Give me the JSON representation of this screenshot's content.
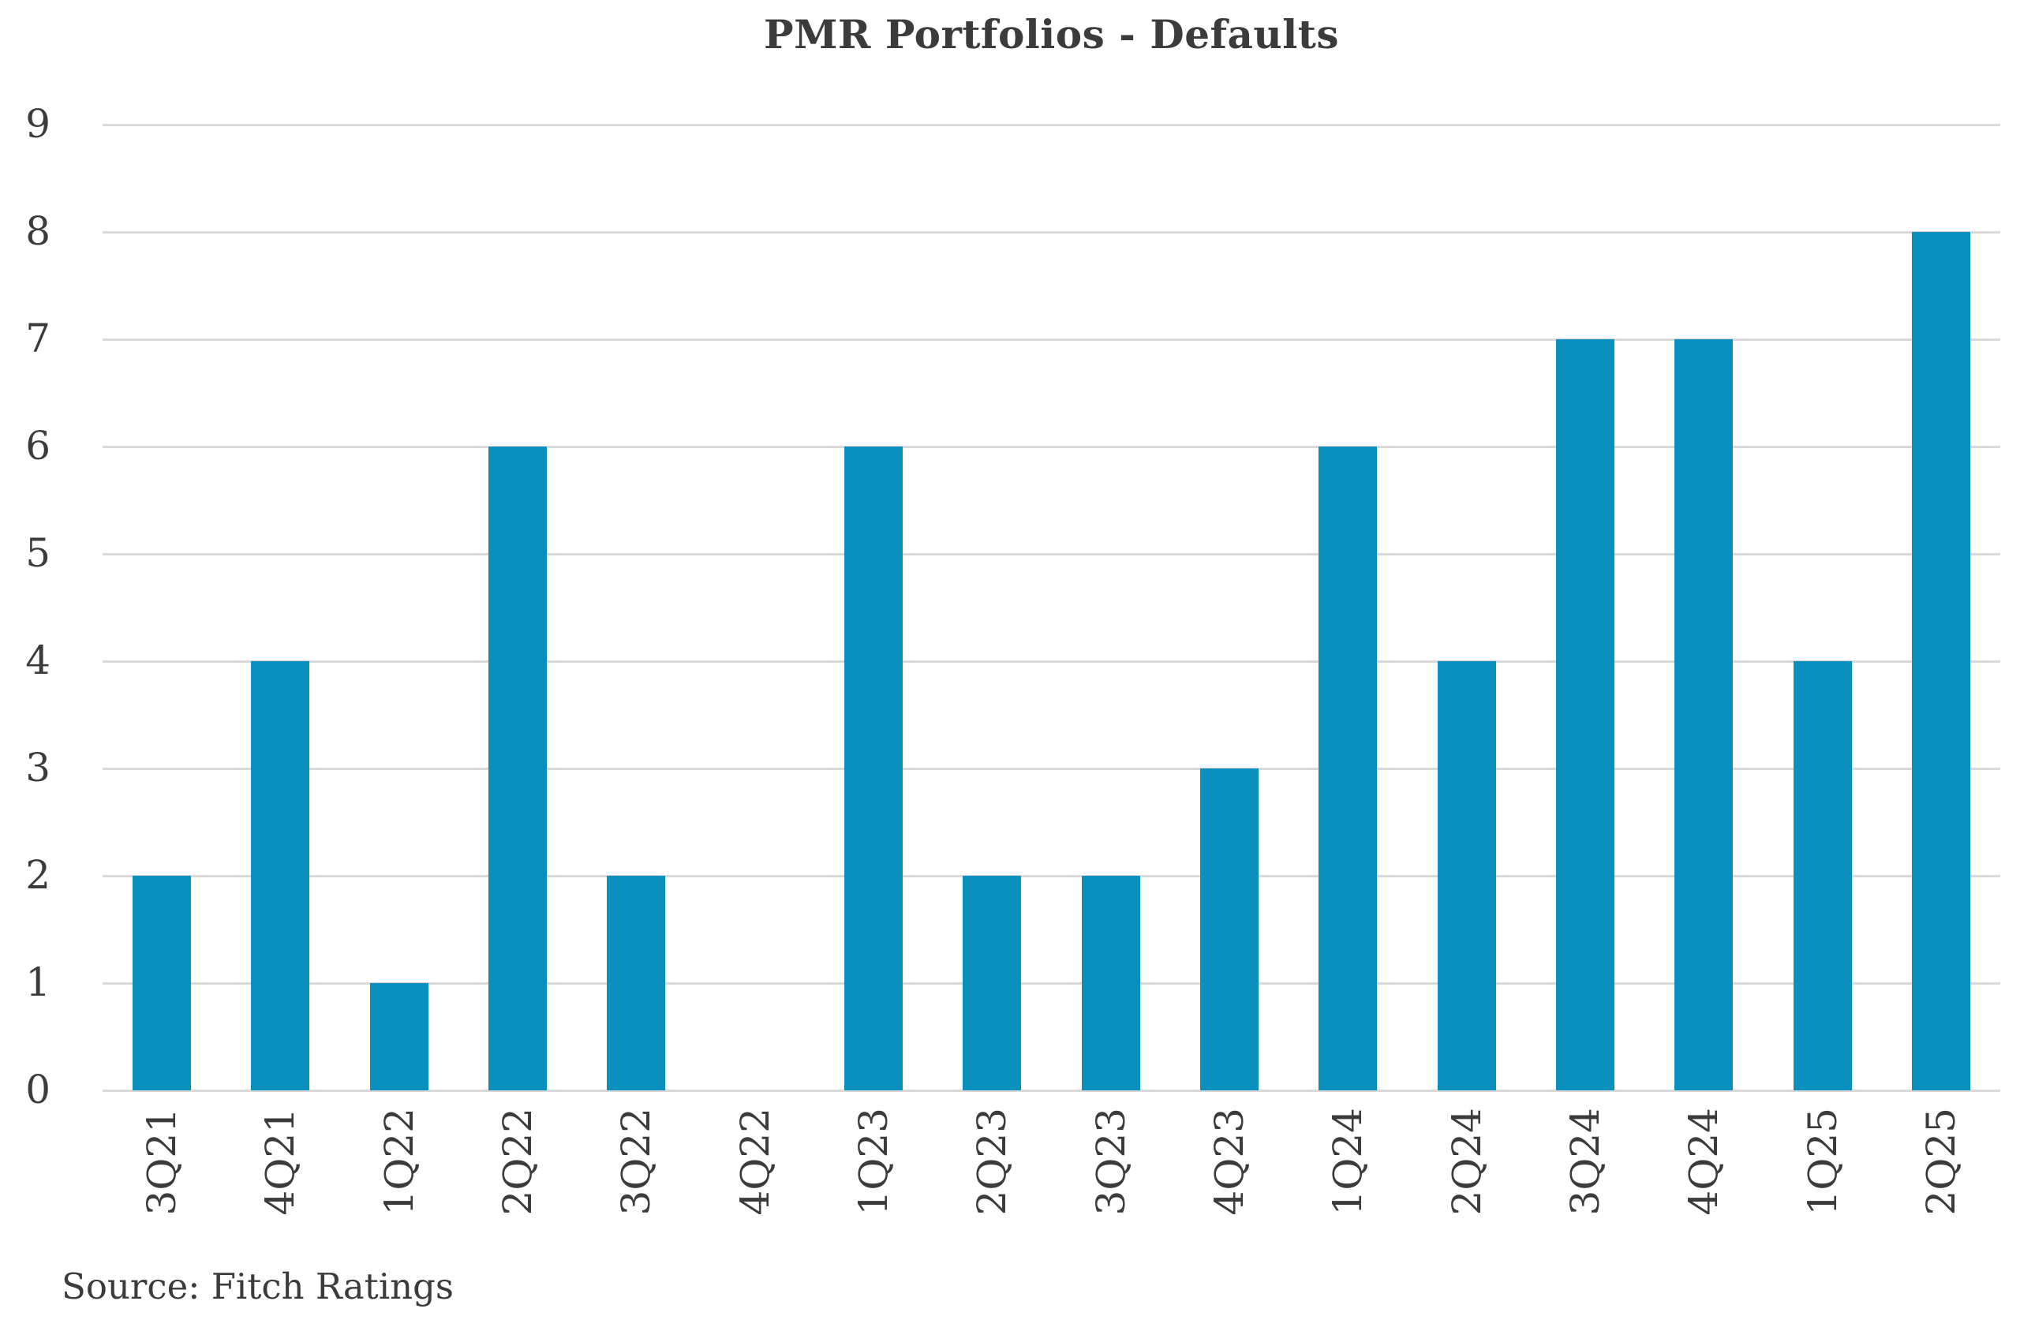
{
  "title": "PMR Portfolios - Defaults",
  "source_note": "Source: Fitch Ratings",
  "colors": {
    "bar": "#0990BE",
    "gridline": "#D9D9D9",
    "text": "#3B3B3B",
    "background": "#FFFFFF"
  },
  "chart_data": {
    "type": "bar",
    "title": "PMR Portfolios - Defaults",
    "categories": [
      "3Q21",
      "4Q21",
      "1Q22",
      "2Q22",
      "3Q22",
      "4Q22",
      "1Q23",
      "2Q23",
      "3Q23",
      "4Q23",
      "1Q24",
      "2Q24",
      "3Q24",
      "4Q24",
      "1Q25",
      "2Q25"
    ],
    "values": [
      2,
      4,
      1,
      6,
      2,
      0,
      6,
      2,
      2,
      3,
      6,
      4,
      7,
      7,
      4,
      8
    ],
    "xlabel": "",
    "ylabel": "",
    "ylim": [
      0,
      9
    ],
    "yticks": [
      0,
      1,
      2,
      3,
      4,
      5,
      6,
      7,
      8,
      9
    ],
    "grid": true,
    "legend": "none",
    "x_tick_rotation_deg": 90,
    "source_note": "Source: Fitch Ratings"
  }
}
